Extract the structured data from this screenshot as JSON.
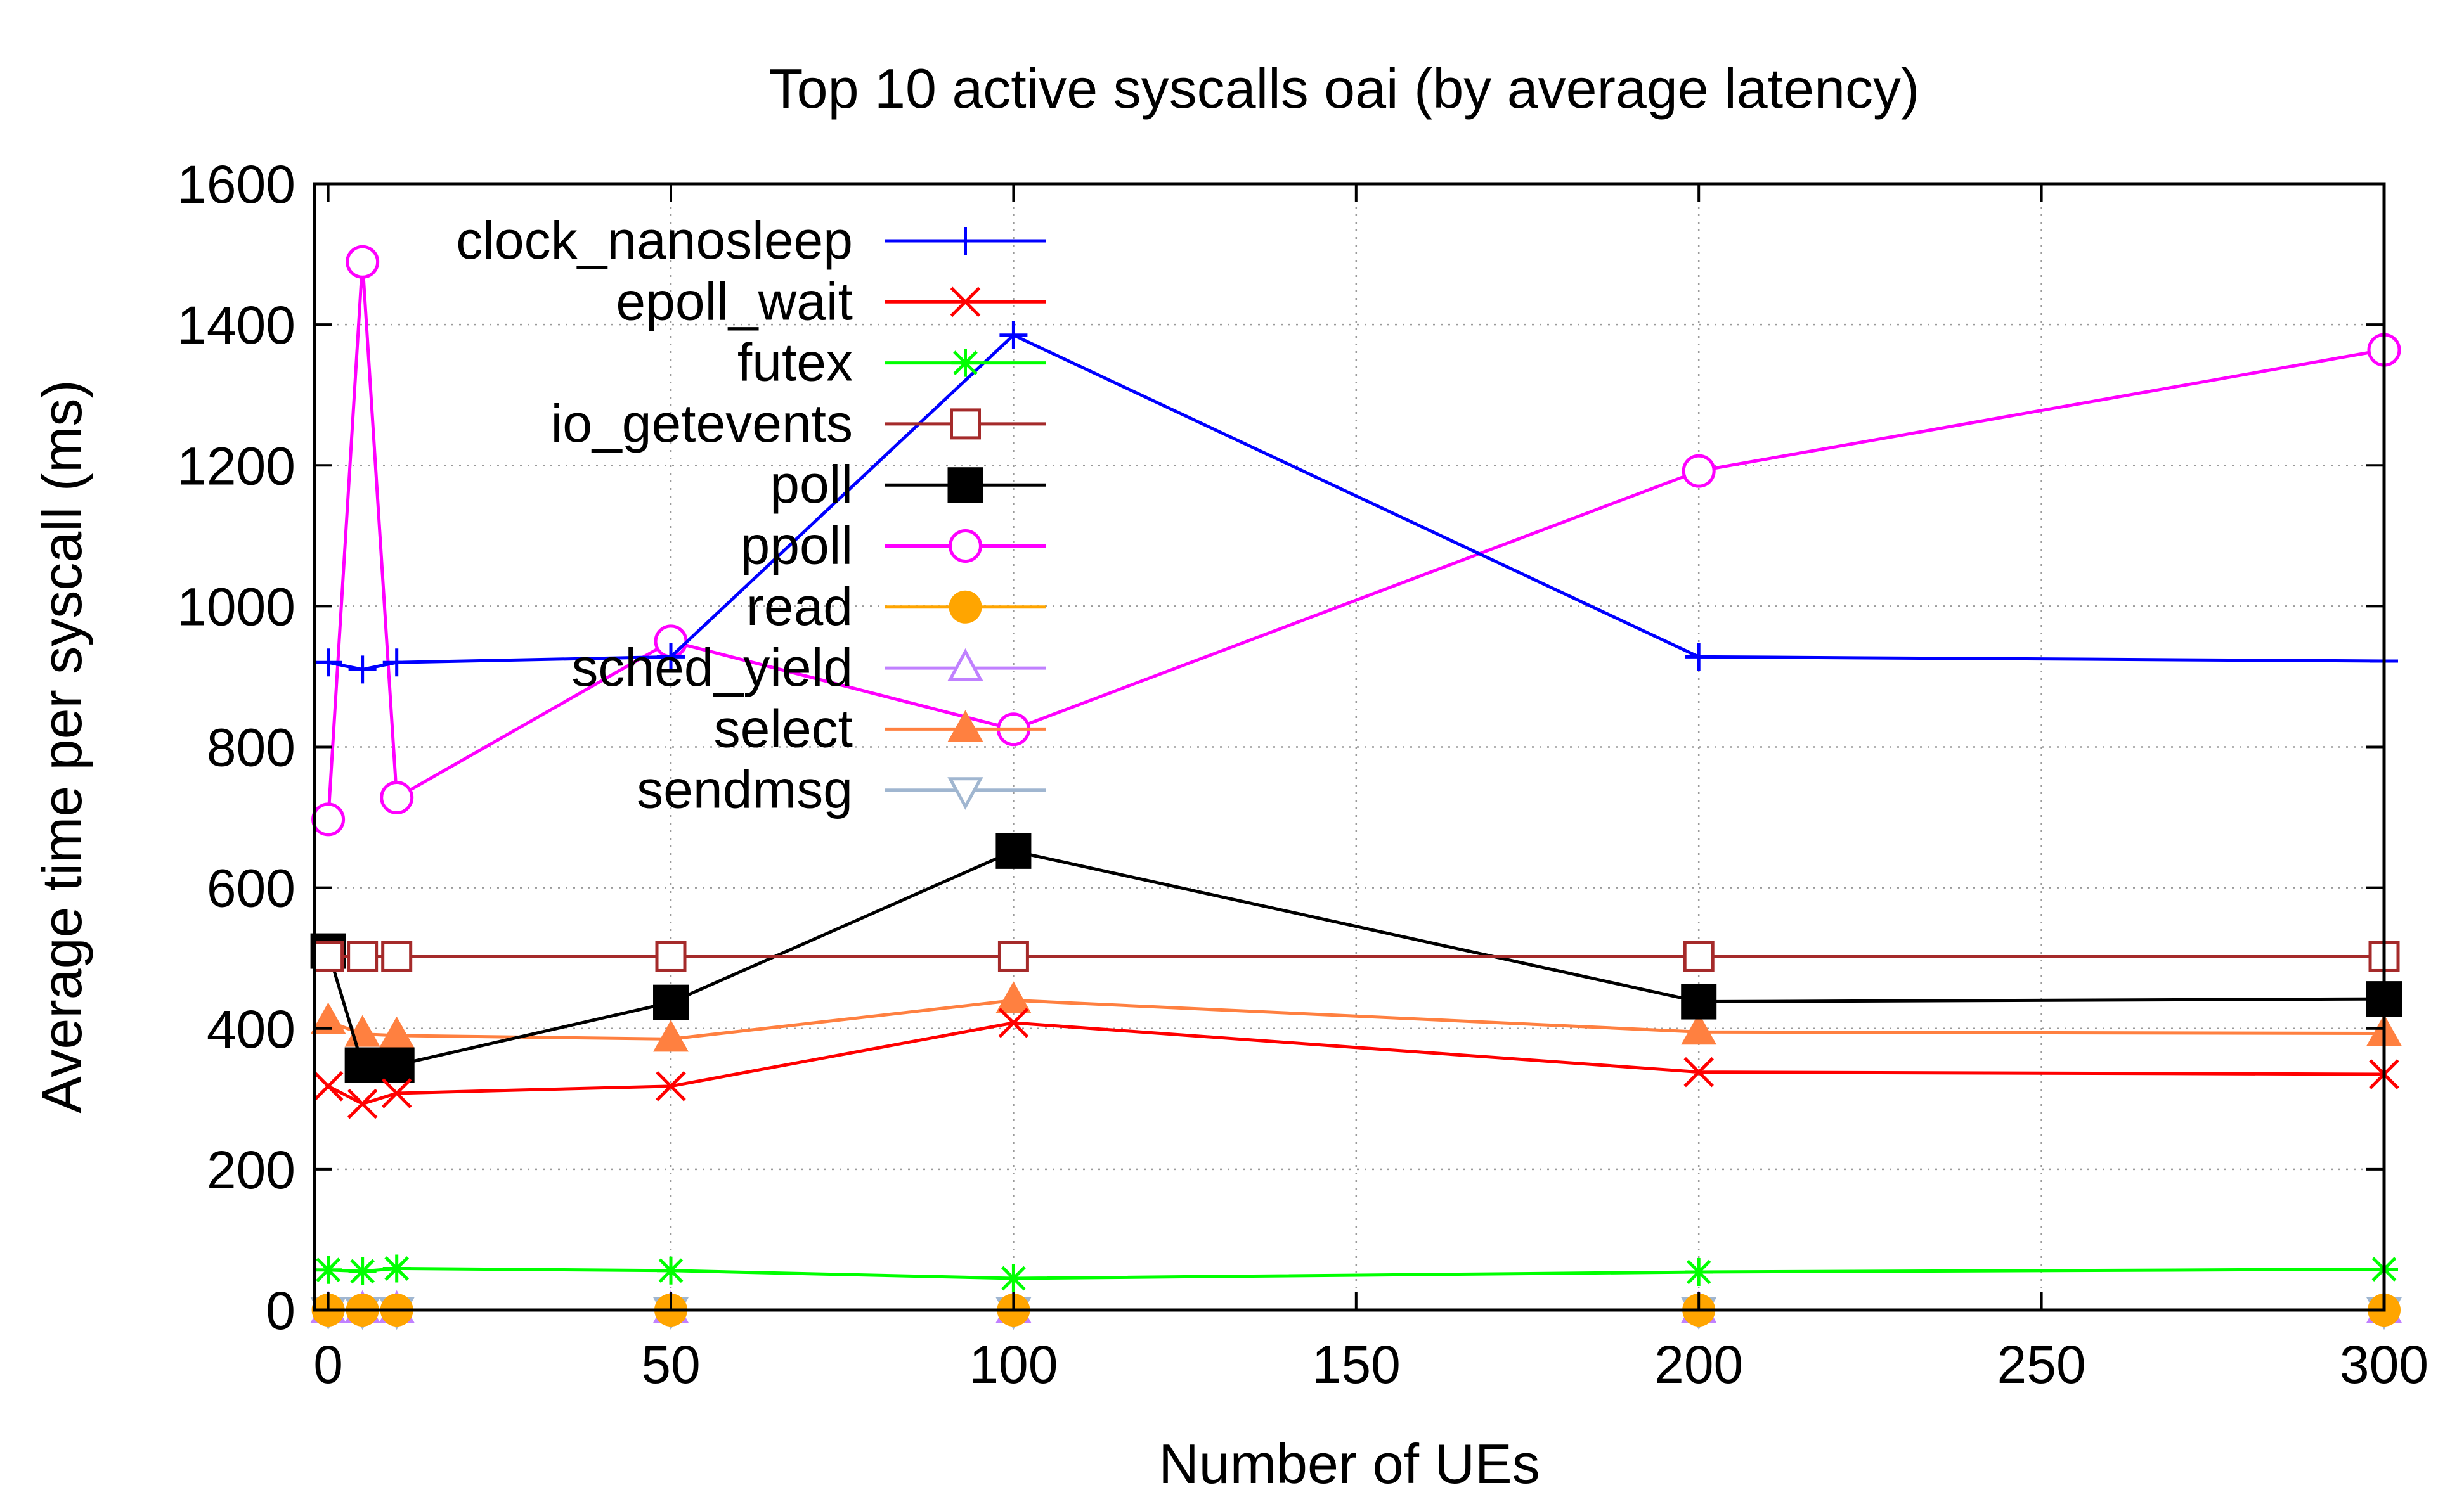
{
  "chart_data": {
    "type": "line",
    "title": "Top 10 active syscalls oai (by average latency)",
    "xlabel": "Number of UEs",
    "ylabel": "Average time per syscall (ms)",
    "xlim": [
      -2,
      300
    ],
    "ylim": [
      0,
      1600
    ],
    "xticks": [
      "0",
      "50",
      "100",
      "150",
      "200",
      "250",
      "300"
    ],
    "yticks": [
      "0",
      "200",
      "400",
      "600",
      "800",
      "1000",
      "1200",
      "1400",
      "1600"
    ],
    "grid": true,
    "legend_position": "top-left",
    "x": [
      0,
      5,
      10,
      50,
      100,
      200,
      300
    ],
    "series": [
      {
        "name": "clock_nanosleep",
        "color": "#0000ff",
        "marker": "plus",
        "values": [
          920,
          910,
          920,
          928,
          1385,
          928,
          922
        ]
      },
      {
        "name": "epoll_wait",
        "color": "#ff0000",
        "marker": "cross",
        "values": [
          318,
          293,
          308,
          318,
          408,
          338,
          335
        ]
      },
      {
        "name": "futex",
        "color": "#00ff00",
        "marker": "star",
        "values": [
          57,
          55,
          59,
          56,
          45,
          54,
          58
        ]
      },
      {
        "name": "io_getevents",
        "color": "#a52a2a",
        "marker": "open-square",
        "values": [
          502,
          502,
          502,
          502,
          502,
          502,
          502
        ]
      },
      {
        "name": "poll",
        "color": "#000000",
        "marker": "filled-square",
        "values": [
          510,
          348,
          348,
          437,
          652,
          438,
          442
        ]
      },
      {
        "name": "ppoll",
        "color": "#ff00ff",
        "marker": "open-circle",
        "values": [
          697,
          1489,
          728,
          950,
          825,
          1192,
          1364
        ]
      },
      {
        "name": "read",
        "color": "#ffa500",
        "marker": "filled-circle",
        "values": [
          0,
          0,
          0,
          0,
          0,
          0,
          0
        ]
      },
      {
        "name": "sched_yield",
        "color": "#c080ff",
        "marker": "open-triangle-up",
        "values": [
          0,
          0,
          0,
          0,
          0,
          0,
          0
        ]
      },
      {
        "name": "select",
        "color": "#ff8040",
        "marker": "filled-triangle-up",
        "values": [
          410,
          392,
          390,
          385,
          440,
          395,
          393
        ]
      },
      {
        "name": "sendmsg",
        "color": "#a0b6d0",
        "marker": "open-triangle-down",
        "values": [
          0,
          0,
          0,
          0,
          0,
          0,
          0
        ]
      }
    ]
  }
}
